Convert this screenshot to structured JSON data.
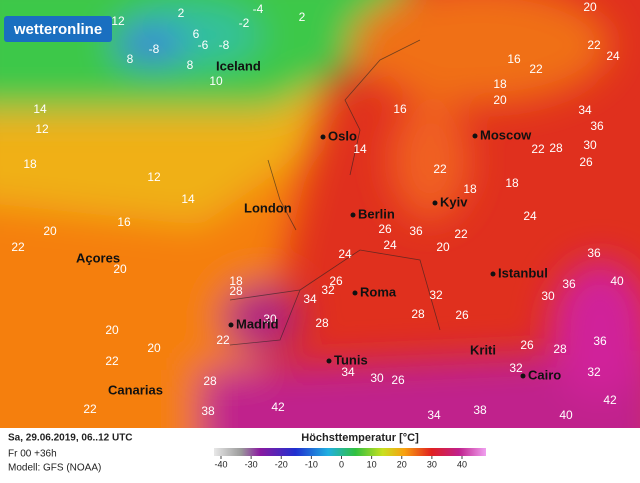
{
  "logo": "wetteronline",
  "cities": [
    "Iceland",
    "Oslo",
    "Moscow",
    "London",
    "Berlin",
    "Kyiv",
    "Açores",
    "Madrid",
    "Roma",
    "Istanbul",
    "Kriti",
    "Tunis",
    "Cairo",
    "Canarias"
  ],
  "temperatures": [
    2,
    -4,
    -2,
    -8,
    -6,
    -8,
    6,
    2,
    8,
    8,
    10,
    12,
    14,
    12,
    18,
    14,
    12,
    16,
    20,
    22,
    20,
    18,
    28,
    22,
    20,
    20,
    22,
    28,
    22,
    38,
    42,
    34,
    30,
    26,
    34,
    38,
    40,
    42,
    32,
    36,
    30,
    36,
    40,
    36,
    34,
    36,
    22,
    20,
    24,
    22,
    16,
    18,
    20,
    22,
    28,
    30,
    26,
    18,
    24,
    22,
    20,
    26,
    24,
    24,
    26,
    32,
    34,
    30,
    28,
    28,
    26,
    32,
    26,
    28,
    32,
    36,
    16,
    14,
    18,
    22
  ],
  "footer": {
    "date": "Sa, 29.06.2019, 06..12 UTC",
    "run": "Fr 00 +36h",
    "model": "Modell: GFS (NOAA)"
  },
  "legend": {
    "title": "Höchsttemperatur [°C]",
    "ticks": [
      -40,
      -30,
      -20,
      -10,
      0,
      10,
      20,
      30,
      40
    ]
  }
}
